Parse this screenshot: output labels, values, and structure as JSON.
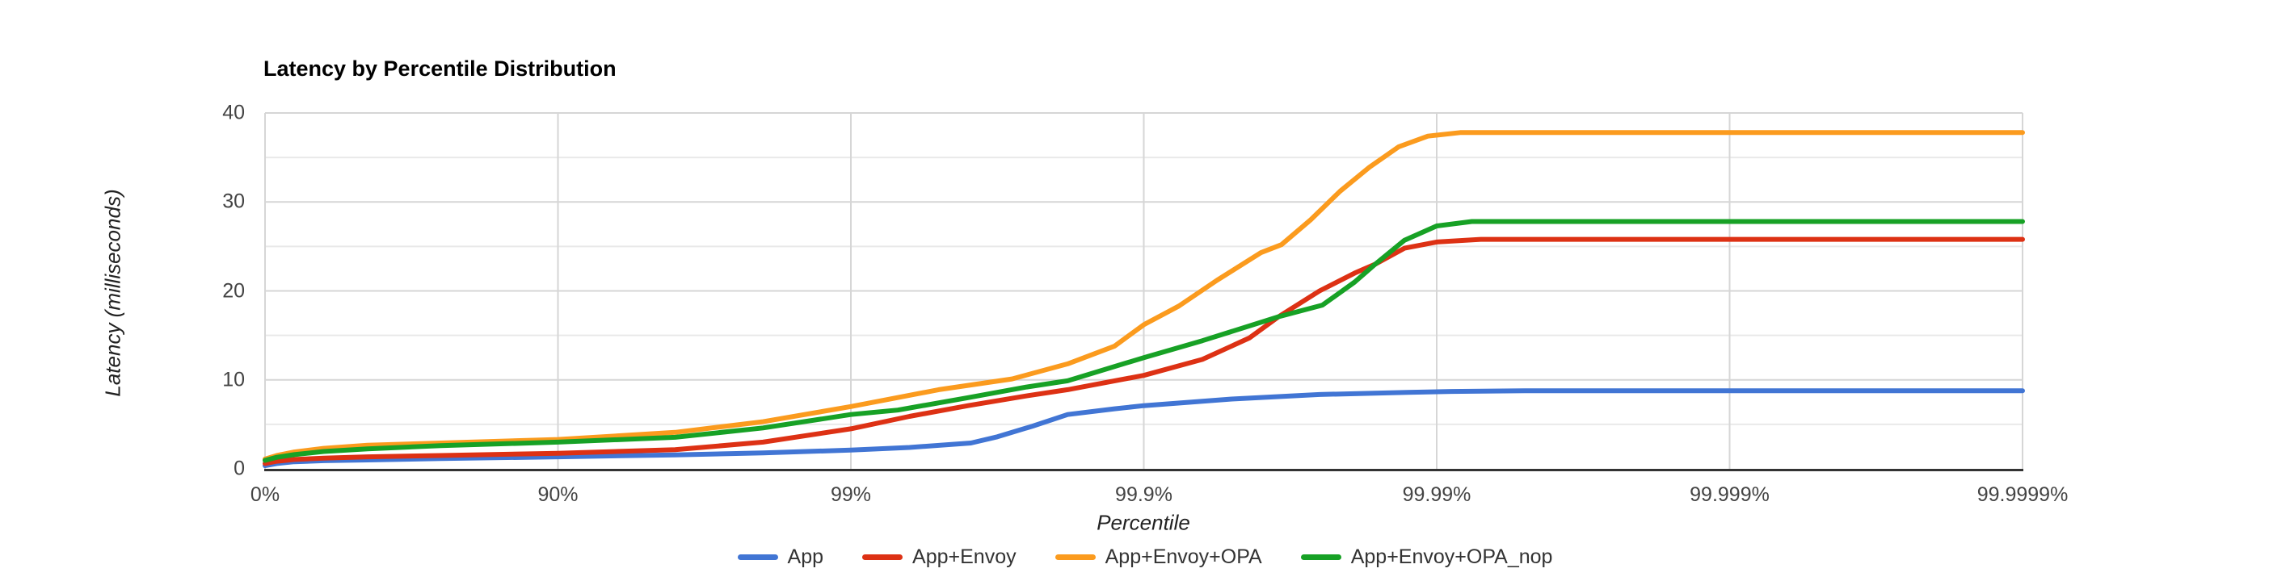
{
  "chart": {
    "title": "Latency by Percentile Distribution",
    "x_title": "Percentile",
    "y_title": "Latency (milliseconds)"
  },
  "colors": {
    "background": "#ffffff",
    "grid_major": "#d6d6d6",
    "grid_minor": "#e9e9e9",
    "axis_line": "#333333",
    "title_text": "#000000",
    "tick_text": "#444444",
    "axis_title_text": "#222222",
    "legend_text": "#333333"
  },
  "chart_data": {
    "type": "line",
    "title": "Latency by Percentile Distribution",
    "xlabel": "Percentile",
    "ylabel": "Latency (milliseconds)",
    "x_scale_note": "logarithmic percentile axis (HdrHistogram style); x unit u = log10(1/(1-p)): 0 -> 0%, 1 -> 90%, 2 -> 99%, 3 -> 99.9%, 4 -> 99.99%, 5 -> 99.999%, 6 -> 99.9999%",
    "xlim_units": [
      0,
      6
    ],
    "ylim": [
      0,
      40
    ],
    "y_ticks": [
      0,
      10,
      20,
      30,
      40
    ],
    "y_minor_gridlines": [
      5,
      15,
      25,
      35
    ],
    "x_ticks": [
      {
        "u": 0,
        "label": "0%"
      },
      {
        "u": 1,
        "label": "90%"
      },
      {
        "u": 2,
        "label": "99%"
      },
      {
        "u": 3,
        "label": "99.9%"
      },
      {
        "u": 4,
        "label": "99.99%"
      },
      {
        "u": 5,
        "label": "99.999%"
      },
      {
        "u": 6,
        "label": "99.9999%"
      }
    ],
    "grid": "horizontal major every 10ms, minor every 5ms; vertical at each percentile decade",
    "legend_position": "bottom",
    "series": [
      {
        "name": "App",
        "color": "#4175d4",
        "points": [
          [
            0,
            0.35
          ],
          [
            0.04,
            0.6
          ],
          [
            0.1,
            0.8
          ],
          [
            0.2,
            0.92
          ],
          [
            0.35,
            1.0
          ],
          [
            0.6,
            1.15
          ],
          [
            1,
            1.35
          ],
          [
            1.4,
            1.57
          ],
          [
            1.7,
            1.8
          ],
          [
            2,
            2.1
          ],
          [
            2.2,
            2.4
          ],
          [
            2.41,
            2.9
          ],
          [
            2.5,
            3.6
          ],
          [
            2.62,
            4.8
          ],
          [
            2.74,
            6.1
          ],
          [
            2.9,
            6.75
          ],
          [
            3,
            7.1
          ],
          [
            3.3,
            7.85
          ],
          [
            3.6,
            8.35
          ],
          [
            3.9,
            8.6
          ],
          [
            4.05,
            8.7
          ],
          [
            4.3,
            8.78
          ],
          [
            6,
            8.78
          ]
        ]
      },
      {
        "name": "App+Envoy",
        "color": "#dd3114",
        "points": [
          [
            0,
            0.6
          ],
          [
            0.04,
            0.85
          ],
          [
            0.1,
            1.05
          ],
          [
            0.2,
            1.2
          ],
          [
            0.35,
            1.35
          ],
          [
            0.6,
            1.5
          ],
          [
            1,
            1.75
          ],
          [
            1.4,
            2.15
          ],
          [
            1.7,
            3.0
          ],
          [
            2,
            4.5
          ],
          [
            2.2,
            5.9
          ],
          [
            2.4,
            7.1
          ],
          [
            2.6,
            8.2
          ],
          [
            2.74,
            8.9
          ],
          [
            3,
            10.5
          ],
          [
            3.2,
            12.3
          ],
          [
            3.36,
            14.7
          ],
          [
            3.46,
            17.1
          ],
          [
            3.6,
            20.0
          ],
          [
            3.72,
            22.0
          ],
          [
            3.79,
            23.0
          ],
          [
            3.89,
            24.8
          ],
          [
            4,
            25.5
          ],
          [
            4.15,
            25.8
          ],
          [
            6,
            25.8
          ]
        ]
      },
      {
        "name": "App+Envoy+OPA",
        "color": "#fb9b1e",
        "points": [
          [
            0,
            1.1
          ],
          [
            0.04,
            1.5
          ],
          [
            0.1,
            1.9
          ],
          [
            0.2,
            2.3
          ],
          [
            0.35,
            2.65
          ],
          [
            0.6,
            2.9
          ],
          [
            1,
            3.3
          ],
          [
            1.4,
            4.1
          ],
          [
            1.7,
            5.3
          ],
          [
            2,
            7.0
          ],
          [
            2.3,
            8.9
          ],
          [
            2.55,
            10.1
          ],
          [
            2.74,
            11.8
          ],
          [
            2.9,
            13.8
          ],
          [
            3,
            16.2
          ],
          [
            3.12,
            18.3
          ],
          [
            3.25,
            21.2
          ],
          [
            3.4,
            24.3
          ],
          [
            3.47,
            25.2
          ],
          [
            3.57,
            28.0
          ],
          [
            3.67,
            31.2
          ],
          [
            3.77,
            33.9
          ],
          [
            3.87,
            36.2
          ],
          [
            3.97,
            37.4
          ],
          [
            4.08,
            37.8
          ],
          [
            6,
            37.8
          ]
        ]
      },
      {
        "name": "App+Envoy+OPA_nop",
        "color": "#17a125",
        "points": [
          [
            0,
            0.95
          ],
          [
            0.04,
            1.3
          ],
          [
            0.1,
            1.6
          ],
          [
            0.2,
            1.95
          ],
          [
            0.35,
            2.25
          ],
          [
            0.6,
            2.6
          ],
          [
            1,
            3.0
          ],
          [
            1.4,
            3.55
          ],
          [
            1.7,
            4.6
          ],
          [
            2,
            6.1
          ],
          [
            2.16,
            6.6
          ],
          [
            2.4,
            8.0
          ],
          [
            2.6,
            9.2
          ],
          [
            2.74,
            9.9
          ],
          [
            3,
            12.5
          ],
          [
            3.2,
            14.4
          ],
          [
            3.46,
            17.1
          ],
          [
            3.61,
            18.4
          ],
          [
            3.72,
            21.0
          ],
          [
            3.79,
            23.0
          ],
          [
            3.89,
            25.7
          ],
          [
            4,
            27.3
          ],
          [
            4.12,
            27.8
          ],
          [
            6,
            27.8
          ]
        ]
      }
    ]
  }
}
